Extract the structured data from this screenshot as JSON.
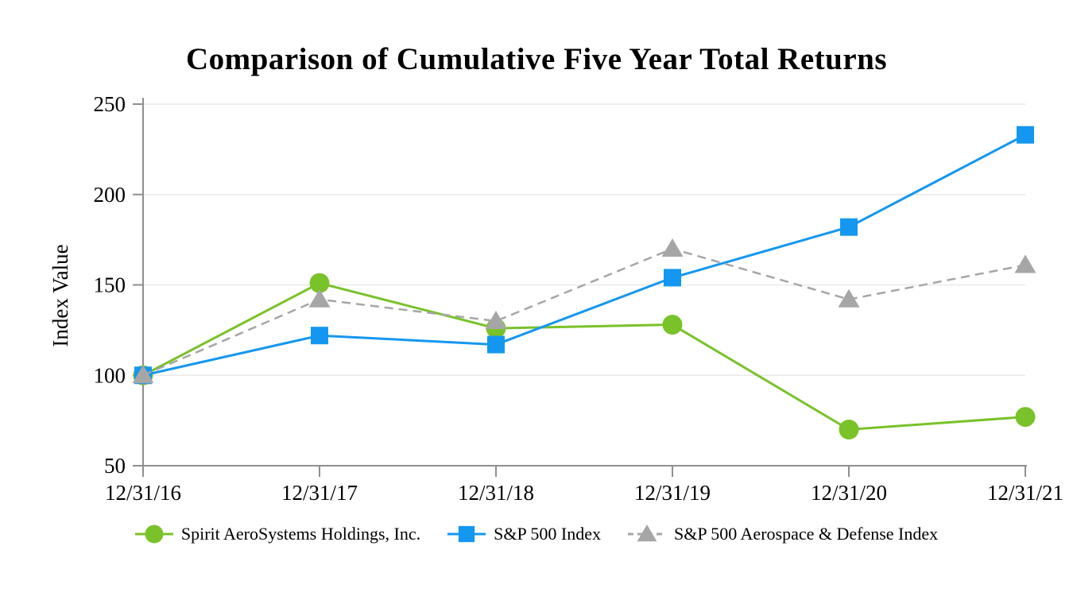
{
  "page": {
    "background": "#FFFFFF"
  },
  "chart_data": {
    "type": "line",
    "title": "Comparison of Cumulative Five Year Total Returns",
    "xlabel": "",
    "ylabel": "Index Value",
    "categories": [
      "12/31/16",
      "12/31/17",
      "12/31/18",
      "12/31/19",
      "12/31/20",
      "12/31/21"
    ],
    "ylim": [
      50,
      250
    ],
    "yticks": [
      50,
      100,
      150,
      200,
      250
    ],
    "grid": "horizontal",
    "legend_position": "bottom",
    "series": [
      {
        "name": "Spirit AeroSystems Holdings, Inc.",
        "values": [
          100,
          151,
          126,
          128,
          70,
          77
        ],
        "color": "#79C229",
        "marker": "circle",
        "line": "solid"
      },
      {
        "name": "S&P 500 Index",
        "values": [
          100,
          122,
          117,
          154,
          182,
          233
        ],
        "color": "#1497F0",
        "marker": "square",
        "line": "solid"
      },
      {
        "name": "S&P 500 Aerospace & Defense Index",
        "values": [
          100,
          142,
          130,
          170,
          142,
          161
        ],
        "color": "#A6A6A6",
        "marker": "triangle",
        "line": "dashed"
      }
    ],
    "colors": {
      "axis": "#8F8F8F",
      "grid": "#E9E9E9",
      "text": "#000000"
    }
  }
}
